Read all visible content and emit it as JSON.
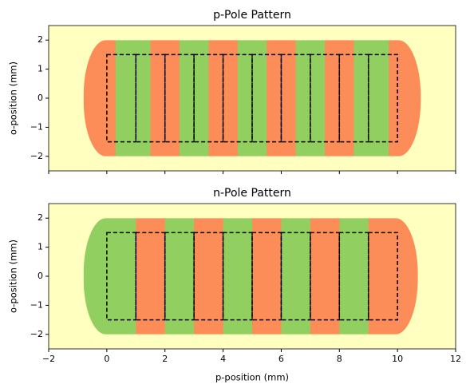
{
  "chart_data": [
    {
      "type": "region",
      "title": "p-Pole Pattern",
      "y_label": "o-position (mm)",
      "background": "#ffffbf",
      "xlim": [
        -2,
        12
      ],
      "ylim": [
        -2.5,
        2.5
      ],
      "xticks": [
        -2,
        0,
        2,
        4,
        6,
        8,
        10,
        12
      ],
      "xticklabels": false,
      "yticks": [
        {
          "value": -2,
          "label": "−2"
        },
        {
          "value": -1,
          "label": "−1"
        },
        0,
        1,
        2
      ],
      "regions": [
        {
          "x": [
            -0.8,
            0.3
          ],
          "y": [
            -2,
            2
          ],
          "color": "#fc8d59"
        },
        {
          "x": [
            0.3,
            1.5
          ],
          "y": [
            -2,
            2
          ],
          "color": "#91cf60"
        },
        {
          "x": [
            1.5,
            2.5
          ],
          "y": [
            -2,
            2
          ],
          "color": "#fc8d59"
        },
        {
          "x": [
            2.5,
            3.5
          ],
          "y": [
            -2,
            2
          ],
          "color": "#91cf60"
        },
        {
          "x": [
            3.5,
            4.5
          ],
          "y": [
            -2,
            2
          ],
          "color": "#fc8d59"
        },
        {
          "x": [
            4.5,
            5.5
          ],
          "y": [
            -2,
            2
          ],
          "color": "#91cf60"
        },
        {
          "x": [
            5.5,
            6.5
          ],
          "y": [
            -2,
            2
          ],
          "color": "#fc8d59"
        },
        {
          "x": [
            6.5,
            7.5
          ],
          "y": [
            -2,
            2
          ],
          "color": "#91cf60"
        },
        {
          "x": [
            7.5,
            8.5
          ],
          "y": [
            -2,
            2
          ],
          "color": "#fc8d59"
        },
        {
          "x": [
            8.5,
            9.7
          ],
          "y": [
            -2,
            2
          ],
          "color": "#91cf60"
        },
        {
          "x": [
            9.7,
            10.8
          ],
          "y": [
            -2,
            2
          ],
          "color": "#fc8d59"
        }
      ],
      "boxes": [
        {
          "x": [
            0,
            1
          ],
          "y": [
            -1.5,
            1.5
          ]
        },
        {
          "x": [
            1,
            2
          ],
          "y": [
            -1.5,
            1.5
          ]
        },
        {
          "x": [
            2,
            3
          ],
          "y": [
            -1.5,
            1.5
          ]
        },
        {
          "x": [
            3,
            4
          ],
          "y": [
            -1.5,
            1.5
          ]
        },
        {
          "x": [
            4,
            5
          ],
          "y": [
            -1.5,
            1.5
          ]
        },
        {
          "x": [
            5,
            6
          ],
          "y": [
            -1.5,
            1.5
          ]
        },
        {
          "x": [
            6,
            7
          ],
          "y": [
            -1.5,
            1.5
          ]
        },
        {
          "x": [
            7,
            8
          ],
          "y": [
            -1.5,
            1.5
          ]
        },
        {
          "x": [
            8,
            9
          ],
          "y": [
            -1.5,
            1.5
          ]
        },
        {
          "x": [
            9,
            10
          ],
          "y": [
            -1.5,
            1.5
          ]
        }
      ]
    },
    {
      "type": "region",
      "title": "n-Pole Pattern",
      "y_label": "o-position (mm)",
      "x_label": "p-position (mm)",
      "background": "#ffffbf",
      "xlim": [
        -2,
        12
      ],
      "ylim": [
        -2.5,
        2.5
      ],
      "xticks": [
        {
          "value": -2,
          "label": "−2"
        },
        0,
        2,
        4,
        6,
        8,
        10,
        12
      ],
      "xticklabels": true,
      "yticks": [
        {
          "value": -2,
          "label": "−2"
        },
        {
          "value": -1,
          "label": "−1"
        },
        0,
        1,
        2
      ],
      "regions": [
        {
          "x": [
            -0.8,
            1
          ],
          "y": [
            -2,
            2
          ],
          "color": "#91cf60"
        },
        {
          "x": [
            1,
            2
          ],
          "y": [
            -2,
            2
          ],
          "color": "#fc8d59"
        },
        {
          "x": [
            2,
            3
          ],
          "y": [
            -2,
            2
          ],
          "color": "#91cf60"
        },
        {
          "x": [
            3,
            4
          ],
          "y": [
            -2,
            2
          ],
          "color": "#fc8d59"
        },
        {
          "x": [
            4,
            5
          ],
          "y": [
            -2,
            2
          ],
          "color": "#91cf60"
        },
        {
          "x": [
            5,
            6
          ],
          "y": [
            -2,
            2
          ],
          "color": "#fc8d59"
        },
        {
          "x": [
            6,
            7
          ],
          "y": [
            -2,
            2
          ],
          "color": "#91cf60"
        },
        {
          "x": [
            7,
            8
          ],
          "y": [
            -2,
            2
          ],
          "color": "#fc8d59"
        },
        {
          "x": [
            8,
            9
          ],
          "y": [
            -2,
            2
          ],
          "color": "#91cf60"
        },
        {
          "x": [
            9,
            10.7
          ],
          "y": [
            -2,
            2
          ],
          "color": "#fc8d59"
        }
      ],
      "boxes": [
        {
          "x": [
            0,
            1
          ],
          "y": [
            -1.5,
            1.5
          ]
        },
        {
          "x": [
            1,
            2
          ],
          "y": [
            -1.5,
            1.5
          ]
        },
        {
          "x": [
            2,
            3
          ],
          "y": [
            -1.5,
            1.5
          ]
        },
        {
          "x": [
            3,
            4
          ],
          "y": [
            -1.5,
            1.5
          ]
        },
        {
          "x": [
            4,
            5
          ],
          "y": [
            -1.5,
            1.5
          ]
        },
        {
          "x": [
            5,
            6
          ],
          "y": [
            -1.5,
            1.5
          ]
        },
        {
          "x": [
            6,
            7
          ],
          "y": [
            -1.5,
            1.5
          ]
        },
        {
          "x": [
            7,
            8
          ],
          "y": [
            -1.5,
            1.5
          ]
        },
        {
          "x": [
            8,
            9
          ],
          "y": [
            -1.5,
            1.5
          ]
        },
        {
          "x": [
            9,
            10
          ],
          "y": [
            -1.5,
            1.5
          ]
        }
      ]
    }
  ]
}
